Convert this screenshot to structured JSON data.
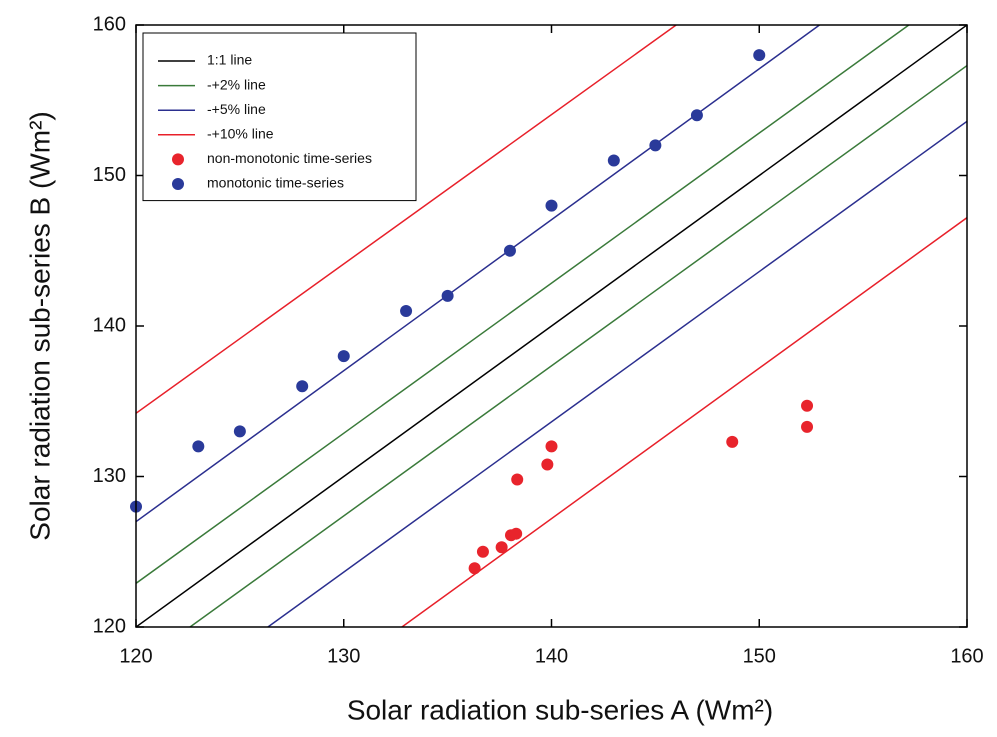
{
  "chart_data": {
    "type": "scatter",
    "xlabel": "Solar radiation sub-series A (Wm²)",
    "ylabel": "Solar radiation sub-series B (Wm²)",
    "xlim": [
      120,
      160
    ],
    "ylim": [
      120,
      160
    ],
    "xticks": [
      120,
      130,
      140,
      150,
      160
    ],
    "yticks": [
      120,
      130,
      140,
      150,
      160
    ],
    "legend": "upper left",
    "series": [
      {
        "name": "1:1 line",
        "color": "#000000",
        "mode": "line",
        "x": [
          120,
          160
        ],
        "values": [
          120,
          160
        ]
      },
      {
        "name": "-+2% line",
        "color": "#3a7a3a",
        "mode": "line",
        "x": [
          120,
          157.2,
          null,
          122.6,
          160
        ],
        "values": [
          122.9,
          160,
          null,
          120,
          157.3
        ]
      },
      {
        "name": "-+5% line",
        "color": "#2b2f8f",
        "mode": "line",
        "x": [
          120,
          152.9,
          null,
          126.35,
          160
        ],
        "values": [
          127,
          160,
          null,
          120,
          153.6
        ]
      },
      {
        "name": "-+10% line",
        "color": "#e8202a",
        "mode": "line",
        "x": [
          120,
          146,
          null,
          132.8,
          160
        ],
        "values": [
          134.2,
          160,
          null,
          120,
          147.2
        ]
      },
      {
        "name": "non-monotonic time-series",
        "color": "#e8242c",
        "mode": "markers",
        "x": [
          136.3,
          136.7,
          137.6,
          138.05,
          138.3,
          138.35,
          139.8,
          140.0,
          148.7,
          152.3,
          152.3
        ],
        "values": [
          123.9,
          125.0,
          125.3,
          126.1,
          126.2,
          129.8,
          130.8,
          132.0,
          132.3,
          134.7,
          133.3
        ]
      },
      {
        "name": "monotonic time-series",
        "color": "#2a3a9a",
        "mode": "markers",
        "x": [
          120,
          123,
          125,
          128,
          130,
          133,
          135,
          138,
          140,
          143,
          145,
          147,
          150
        ],
        "values": [
          128,
          132,
          133,
          136,
          138,
          141,
          142,
          145,
          148,
          151,
          152,
          154,
          158
        ]
      }
    ]
  }
}
